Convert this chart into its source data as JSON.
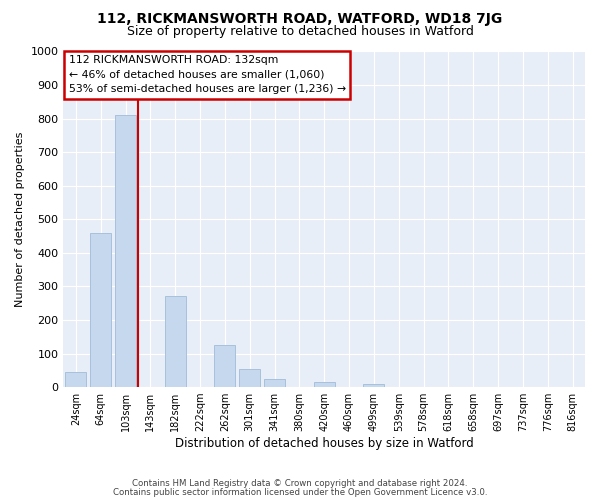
{
  "title": "112, RICKMANSWORTH ROAD, WATFORD, WD18 7JG",
  "subtitle": "Size of property relative to detached houses in Watford",
  "xlabel": "Distribution of detached houses by size in Watford",
  "ylabel": "Number of detached properties",
  "footnote1": "Contains HM Land Registry data © Crown copyright and database right 2024.",
  "footnote2": "Contains public sector information licensed under the Open Government Licence v3.0.",
  "bar_labels": [
    "24sqm",
    "64sqm",
    "103sqm",
    "143sqm",
    "182sqm",
    "222sqm",
    "262sqm",
    "301sqm",
    "341sqm",
    "380sqm",
    "420sqm",
    "460sqm",
    "499sqm",
    "539sqm",
    "578sqm",
    "618sqm",
    "658sqm",
    "697sqm",
    "737sqm",
    "776sqm",
    "816sqm"
  ],
  "bar_values": [
    45,
    460,
    810,
    0,
    270,
    0,
    125,
    55,
    25,
    0,
    15,
    0,
    8,
    0,
    0,
    0,
    0,
    0,
    0,
    0,
    0
  ],
  "bar_color": "#c5d8ee",
  "bar_edge_color": "#a0bcd8",
  "vline_color": "#cc0000",
  "vline_pos": 2.5,
  "ylim": [
    0,
    1000
  ],
  "yticks": [
    0,
    100,
    200,
    300,
    400,
    500,
    600,
    700,
    800,
    900,
    1000
  ],
  "annotation_title": "112 RICKMANSWORTH ROAD: 132sqm",
  "annotation_line1": "← 46% of detached houses are smaller (1,060)",
  "annotation_line2": "53% of semi-detached houses are larger (1,236) →",
  "annotation_box_color": "#ffffff",
  "annotation_box_edge": "#cc0000",
  "bg_color": "#ffffff",
  "plot_bg_color": "#e8eef7",
  "grid_color": "#ffffff",
  "title_color": "#000000",
  "footnote_color": "#444444"
}
